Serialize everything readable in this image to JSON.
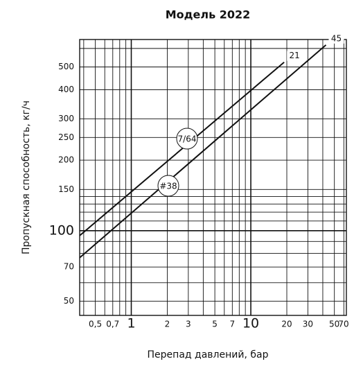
{
  "chart_data": {
    "type": "line",
    "title": "Модель 2022",
    "x_label": "Перепад давлений, бар",
    "y_label": "Пропускная способность, кг/ч",
    "log_x": true,
    "log_y": true,
    "grid": true,
    "xlim": [
      0.37,
      63
    ],
    "ylim": [
      43.5,
      655
    ],
    "xticks": [
      {
        "value": 0.5,
        "label": "0,5"
      },
      {
        "value": 0.7,
        "label": "0,7"
      },
      1,
      2,
      3,
      5,
      7,
      10,
      20,
      30,
      50,
      70
    ],
    "x_minor_ticks": [
      0.4,
      0.6,
      0.8,
      0.9,
      4,
      6,
      8,
      9,
      40,
      60
    ],
    "yticks": [
      50,
      70,
      100,
      150,
      200,
      250,
      300,
      400,
      500
    ],
    "y_minor_ticks": [
      60,
      80,
      90,
      110,
      120,
      130,
      140,
      600
    ],
    "series": [
      {
        "name": "21",
        "color": "#111111",
        "x": [
          0.37,
          19
        ],
        "values": [
          95.3,
          524
        ]
      },
      {
        "name": "45",
        "color": "#111111",
        "x": [
          0.37,
          42.5
        ],
        "values": [
          76.7,
          621
        ]
      }
    ],
    "annotations": [
      "7/64",
      "#38"
    ]
  }
}
